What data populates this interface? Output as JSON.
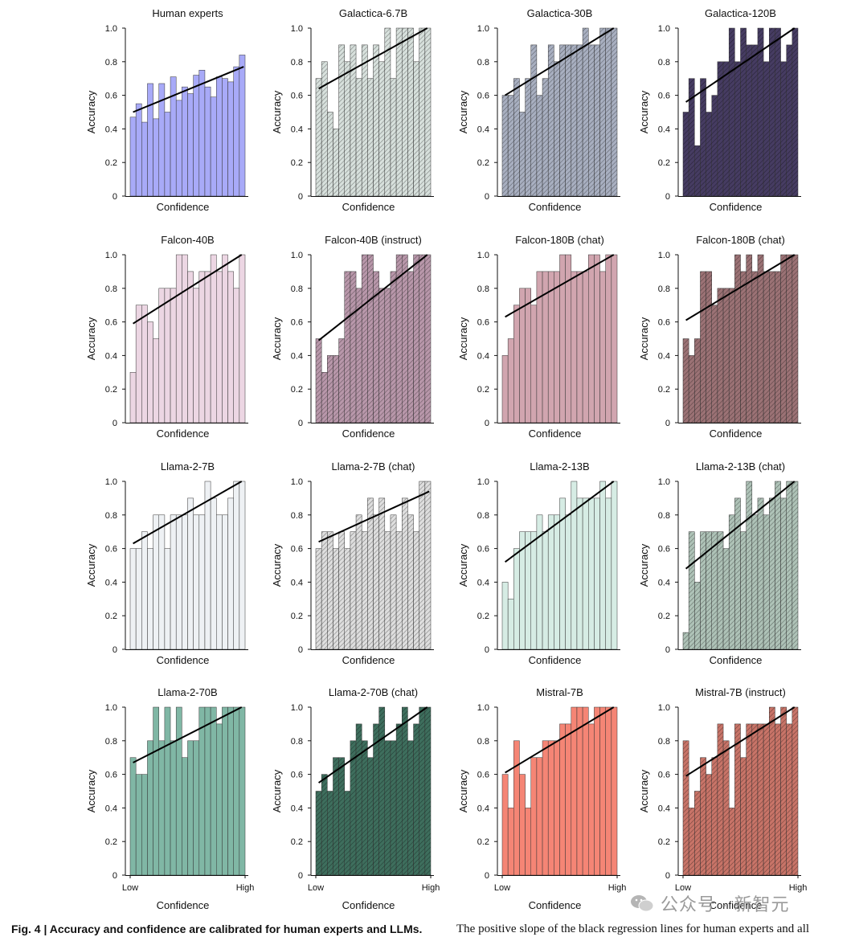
{
  "figure": {
    "caption_bold": "Fig. 4 | Accuracy and confidence are calibrated for human experts and LLMs.",
    "caption_rest": "The positive slope of the black regression lines for human experts and all",
    "watermark": "公众号 · 新智元",
    "colors": {
      "axis": "#111111",
      "line": "#000000",
      "bar_edge": "#333333"
    }
  },
  "chart_data": [
    {
      "type": "bar",
      "title": "Human experts",
      "color": "#a8aaf8",
      "hatch": false,
      "values": [
        0.47,
        0.55,
        0.44,
        0.67,
        0.46,
        0.67,
        0.5,
        0.71,
        0.57,
        0.65,
        0.61,
        0.72,
        0.75,
        0.65,
        0.59,
        0.71,
        0.7,
        0.68,
        0.77,
        0.84
      ],
      "regression": [
        0.5,
        0.77
      ],
      "xlabel": "Confidence",
      "ylabel": "Accuracy",
      "ylim": [
        0,
        1
      ],
      "yticks": [
        "0",
        "0.2",
        "0.4",
        "0.6",
        "0.8",
        "1.0"
      ],
      "xticks": []
    },
    {
      "type": "bar",
      "title": "Galactica-6.7B",
      "color": "#d7e0dc",
      "hatch": true,
      "values": [
        0.7,
        0.8,
        0.5,
        0.4,
        0.9,
        0.8,
        0.9,
        0.7,
        0.9,
        0.7,
        0.9,
        0.8,
        1.0,
        0.7,
        1.0,
        1.0,
        1.0,
        0.8,
        1.0,
        1.0
      ],
      "regression": [
        0.64,
        1.0
      ],
      "xlabel": "Confidence",
      "ylabel": "Accuracy",
      "ylim": [
        0,
        1
      ],
      "yticks": [
        "0",
        "0.2",
        "0.4",
        "0.6",
        "0.8",
        "1.0"
      ],
      "xticks": []
    },
    {
      "type": "bar",
      "title": "Galactica-30B",
      "color": "#a8afc0",
      "hatch": true,
      "values": [
        0.6,
        0.6,
        0.7,
        0.5,
        0.7,
        0.9,
        0.6,
        0.7,
        0.9,
        0.8,
        0.9,
        0.9,
        0.9,
        0.9,
        1.0,
        0.9,
        0.9,
        1.0,
        1.0,
        1.0
      ],
      "regression": [
        0.6,
        1.0
      ],
      "xlabel": "Confidence",
      "ylabel": "Accuracy",
      "ylim": [
        0,
        1
      ],
      "yticks": [
        "0",
        "0.2",
        "0.4",
        "0.6",
        "0.8",
        "1.0"
      ],
      "xticks": []
    },
    {
      "type": "bar",
      "title": "Galactica-120B",
      "color": "#463c62",
      "hatch": true,
      "values": [
        0.5,
        0.7,
        0.3,
        0.7,
        0.5,
        0.6,
        0.8,
        0.8,
        1.0,
        0.8,
        1.0,
        0.9,
        0.9,
        1.0,
        0.8,
        1.0,
        1.0,
        0.8,
        0.9,
        1.0
      ],
      "regression": [
        0.56,
        1.0
      ],
      "xlabel": "Confidence",
      "ylabel": "Accuracy",
      "ylim": [
        0,
        1
      ],
      "yticks": [
        "0",
        "0.2",
        "0.4",
        "0.6",
        "0.8",
        "1.0"
      ],
      "xticks": []
    },
    {
      "type": "bar",
      "title": "Falcon-40B",
      "color": "#ecd6e3",
      "hatch": false,
      "values": [
        0.3,
        0.7,
        0.7,
        0.6,
        0.5,
        0.8,
        0.8,
        0.8,
        1.0,
        1.0,
        0.9,
        0.8,
        0.9,
        0.9,
        1.0,
        0.9,
        1.0,
        0.9,
        0.8,
        1.0
      ],
      "regression": [
        0.59,
        1.0
      ],
      "xlabel": "Confidence",
      "ylabel": "Accuracy",
      "ylim": [
        0,
        1
      ],
      "yticks": [
        "0",
        "0.2",
        "0.4",
        "0.6",
        "0.8",
        "1.0"
      ],
      "xticks": []
    },
    {
      "type": "bar",
      "title": "Falcon-40B (instruct)",
      "color": "#b897aa",
      "hatch": true,
      "values": [
        0.5,
        0.3,
        0.4,
        0.4,
        0.5,
        0.9,
        0.9,
        0.8,
        1.0,
        1.0,
        0.9,
        0.8,
        0.8,
        0.9,
        1.0,
        1.0,
        0.9,
        1.0,
        1.0,
        1.0
      ],
      "regression": [
        0.49,
        1.0
      ],
      "xlabel": "Confidence",
      "ylabel": "Accuracy",
      "ylim": [
        0,
        1
      ],
      "yticks": [
        "0",
        "0.2",
        "0.4",
        "0.6",
        "0.8",
        "1.0"
      ],
      "xticks": []
    },
    {
      "type": "bar",
      "title": "Falcon-180B (chat)",
      "color": "#d1a5af",
      "hatch": false,
      "values": [
        0.4,
        0.5,
        0.7,
        0.8,
        0.8,
        0.7,
        0.9,
        0.9,
        0.9,
        0.9,
        1.0,
        1.0,
        0.9,
        0.9,
        0.9,
        1.0,
        1.0,
        0.9,
        1.0,
        1.0
      ],
      "regression": [
        0.63,
        1.0
      ],
      "xlabel": "Confidence",
      "ylabel": "Accuracy",
      "ylim": [
        0,
        1
      ],
      "yticks": [
        "0",
        "0.2",
        "0.4",
        "0.6",
        "0.8",
        "1.0"
      ],
      "xticks": []
    },
    {
      "type": "bar",
      "title": "Falcon-180B (chat)",
      "color": "#9b7275",
      "hatch": true,
      "values": [
        0.5,
        0.4,
        0.5,
        0.9,
        0.9,
        0.7,
        0.8,
        0.8,
        0.8,
        1.0,
        0.9,
        1.0,
        0.9,
        1.0,
        0.9,
        0.9,
        0.9,
        1.0,
        1.0,
        1.0
      ],
      "regression": [
        0.61,
        1.0
      ],
      "xlabel": "Confidence",
      "ylabel": "Accuracy",
      "ylim": [
        0,
        1
      ],
      "yticks": [
        "0",
        "0.2",
        "0.4",
        "0.6",
        "0.8",
        "1.0"
      ],
      "xticks": []
    },
    {
      "type": "bar",
      "title": "Llama-2-7B",
      "color": "#eef1f4",
      "hatch": false,
      "values": [
        0.6,
        0.6,
        0.7,
        0.6,
        0.8,
        0.8,
        0.6,
        0.8,
        0.8,
        0.8,
        0.9,
        0.8,
        0.8,
        1.0,
        0.9,
        0.8,
        0.8,
        0.9,
        1.0,
        1.0
      ],
      "regression": [
        0.63,
        1.0
      ],
      "xlabel": "Confidence",
      "ylabel": "Accuracy",
      "ylim": [
        0,
        1
      ],
      "yticks": [
        "0",
        "0.2",
        "0.4",
        "0.6",
        "0.8",
        "1.0"
      ],
      "xticks": []
    },
    {
      "type": "bar",
      "title": "Llama-2-7B (chat)",
      "color": "#dedede",
      "hatch": true,
      "values": [
        0.6,
        0.7,
        0.7,
        0.6,
        0.7,
        0.6,
        0.7,
        0.8,
        0.7,
        0.9,
        0.8,
        0.9,
        0.7,
        0.8,
        0.7,
        0.9,
        0.8,
        0.7,
        1.0,
        1.0
      ],
      "regression": [
        0.64,
        0.94
      ],
      "xlabel": "Confidence",
      "ylabel": "Accuracy",
      "ylim": [
        0,
        1
      ],
      "yticks": [
        "0",
        "0.2",
        "0.4",
        "0.6",
        "0.8",
        "1.0"
      ],
      "xticks": []
    },
    {
      "type": "bar",
      "title": "Llama-2-13B",
      "color": "#d6ece4",
      "hatch": false,
      "values": [
        0.4,
        0.3,
        0.6,
        0.7,
        0.7,
        0.7,
        0.8,
        0.7,
        0.8,
        0.8,
        0.9,
        0.8,
        1.0,
        0.9,
        0.9,
        0.9,
        0.9,
        1.0,
        0.9,
        1.0
      ],
      "regression": [
        0.52,
        1.0
      ],
      "xlabel": "Confidence",
      "ylabel": "Accuracy",
      "ylim": [
        0,
        1
      ],
      "yticks": [
        "0",
        "0.2",
        "0.4",
        "0.6",
        "0.8",
        "1.0"
      ],
      "xticks": []
    },
    {
      "type": "bar",
      "title": "Llama-2-13B (chat)",
      "color": "#aec2b7",
      "hatch": true,
      "values": [
        0.1,
        0.7,
        0.4,
        0.7,
        0.7,
        0.7,
        0.7,
        0.6,
        0.8,
        0.9,
        0.7,
        1.0,
        0.8,
        0.9,
        0.8,
        0.9,
        1.0,
        0.9,
        1.0,
        1.0
      ],
      "regression": [
        0.48,
        1.0
      ],
      "xlabel": "Confidence",
      "ylabel": "Accuracy",
      "ylim": [
        0,
        1
      ],
      "yticks": [
        "0",
        "0.2",
        "0.4",
        "0.6",
        "0.8",
        "1.0"
      ],
      "xticks": []
    },
    {
      "type": "bar",
      "title": "Llama-2-70B",
      "color": "#80b7a5",
      "hatch": false,
      "values": [
        0.7,
        0.6,
        0.6,
        0.8,
        1.0,
        0.8,
        1.0,
        0.8,
        1.0,
        0.7,
        0.8,
        0.8,
        1.0,
        1.0,
        1.0,
        0.9,
        1.0,
        1.0,
        1.0,
        1.0
      ],
      "regression": [
        0.67,
        1.0
      ],
      "xlabel": "Confidence",
      "ylabel": "Accuracy",
      "ylim": [
        0,
        1
      ],
      "yticks": [
        "0",
        "0.2",
        "0.4",
        "0.6",
        "0.8",
        "1.0"
      ],
      "xticks": [
        "Low",
        "High"
      ]
    },
    {
      "type": "bar",
      "title": "Llama-2-70B (chat)",
      "color": "#3e6e5d",
      "hatch": true,
      "values": [
        0.5,
        0.6,
        0.5,
        0.7,
        0.7,
        0.5,
        0.8,
        0.9,
        0.8,
        0.7,
        0.9,
        1.0,
        0.8,
        0.8,
        0.9,
        1.0,
        0.8,
        0.9,
        1.0,
        1.0
      ],
      "regression": [
        0.55,
        1.0
      ],
      "xlabel": "Confidence",
      "ylabel": "Accuracy",
      "ylim": [
        0,
        1
      ],
      "yticks": [
        "0",
        "0.2",
        "0.4",
        "0.6",
        "0.8",
        "1.0"
      ],
      "xticks": [
        "Low",
        "High"
      ]
    },
    {
      "type": "bar",
      "title": "Mistral-7B",
      "color": "#f58575",
      "hatch": false,
      "values": [
        0.6,
        0.4,
        0.8,
        0.6,
        0.4,
        0.7,
        0.7,
        0.8,
        0.8,
        0.8,
        0.9,
        0.9,
        1.0,
        1.0,
        1.0,
        0.9,
        1.0,
        1.0,
        1.0,
        1.0
      ],
      "regression": [
        0.61,
        1.0
      ],
      "xlabel": "Confidence",
      "ylabel": "Accuracy",
      "ylim": [
        0,
        1
      ],
      "yticks": [
        "0",
        "0.2",
        "0.4",
        "0.6",
        "0.8",
        "1.0"
      ],
      "xticks": [
        "Low",
        "High"
      ]
    },
    {
      "type": "bar",
      "title": "Mistral-7B (instruct)",
      "color": "#c87468",
      "hatch": true,
      "values": [
        0.8,
        0.4,
        0.5,
        0.7,
        0.6,
        0.7,
        0.9,
        0.8,
        0.4,
        0.9,
        0.7,
        0.9,
        0.9,
        0.9,
        0.9,
        1.0,
        0.9,
        1.0,
        0.9,
        1.0
      ],
      "regression": [
        0.59,
        1.0
      ],
      "xlabel": "Confidence",
      "ylabel": "Accuracy",
      "ylim": [
        0,
        1
      ],
      "yticks": [
        "0",
        "0.2",
        "0.4",
        "0.6",
        "0.8",
        "1.0"
      ],
      "xticks": [
        "Low",
        "High"
      ]
    }
  ]
}
